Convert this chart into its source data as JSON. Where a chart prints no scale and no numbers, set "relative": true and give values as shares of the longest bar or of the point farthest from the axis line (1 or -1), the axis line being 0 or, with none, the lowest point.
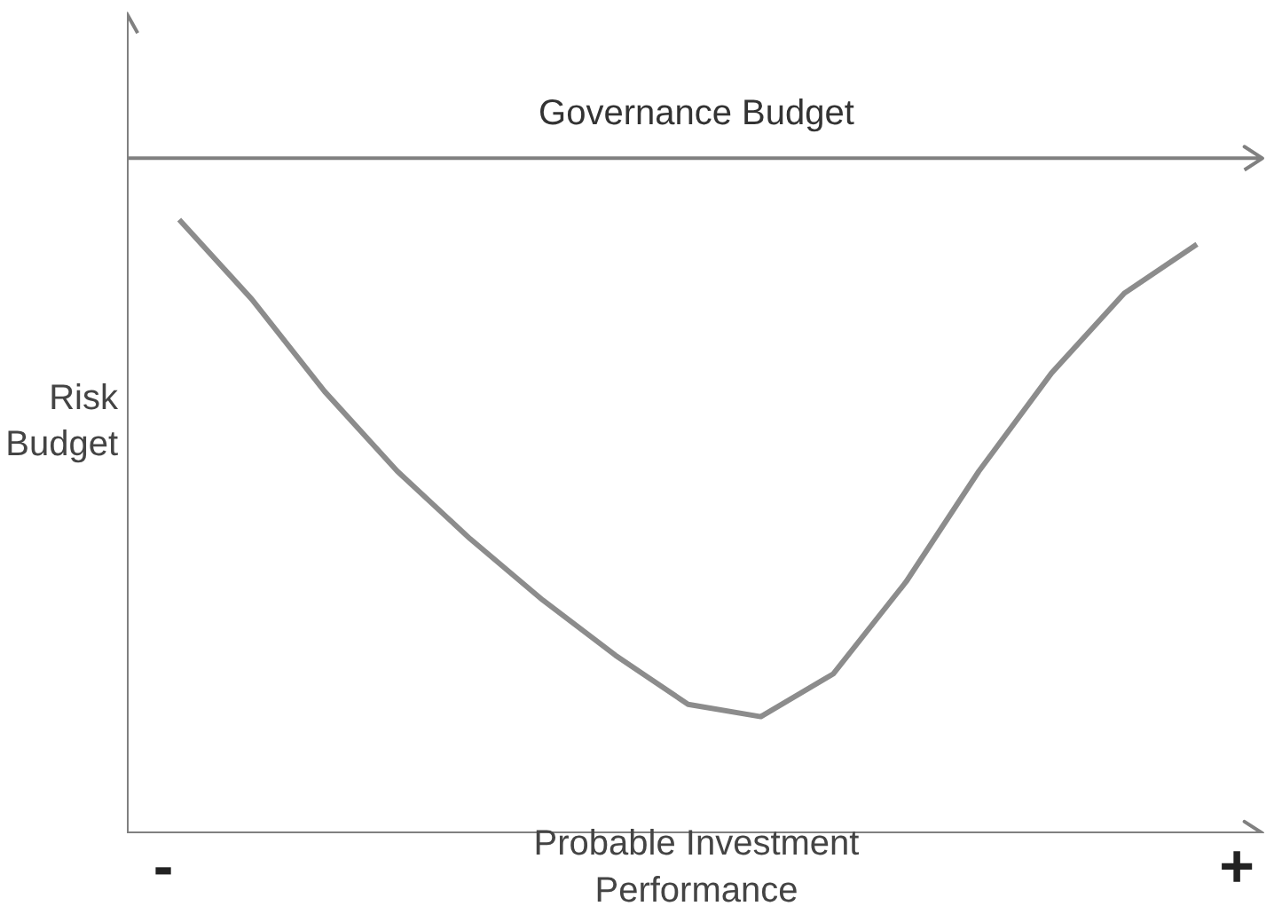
{
  "chart_data": {
    "type": "line",
    "relative": true,
    "xlabel": "Probable Investment\nPerformance",
    "ylabel": "Risk\nBudget",
    "categories": [
      null,
      null,
      null,
      null,
      null,
      null,
      null,
      null,
      null,
      null,
      null,
      null,
      null,
      null,
      null
    ],
    "annotations": [
      "-",
      "+"
    ],
    "ref_lines": [
      {
        "axis": "y",
        "value": 1.1,
        "label": "Governance Budget",
        "color": "#808080"
      }
    ],
    "series": [
      {
        "color": "#8c8c8c",
        "values": [
          1.0,
          0.87,
          0.72,
          0.59,
          0.48,
          0.38,
          0.29,
          0.21,
          0.19,
          0.26,
          0.41,
          0.59,
          0.75,
          0.88,
          0.96
        ]
      }
    ]
  }
}
